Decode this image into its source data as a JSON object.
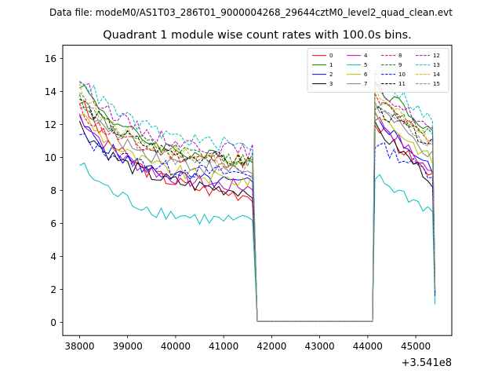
{
  "chart_data": {
    "type": "line",
    "suptitle": "Data file: modeM0/AS1T03_286T01_9000004268_29644cztM0_level2_quad_clean.evt",
    "title": "Quadrant 1 module wise count rates with 100.0s bins.",
    "xlabel": "",
    "ylabel": "",
    "x_offset_label": "+3.541e8",
    "x_offset": 354100000,
    "xlim": [
      37650,
      45750
    ],
    "ylim": [
      -0.8,
      16.8
    ],
    "x_ticks": [
      38000,
      39000,
      40000,
      41000,
      42000,
      43000,
      44000,
      45000
    ],
    "x_tick_labels": [
      "38000",
      "39000",
      "40000",
      "41000",
      "42000",
      "43000",
      "44000",
      "45000"
    ],
    "y_ticks": [
      0,
      2,
      4,
      6,
      8,
      10,
      12,
      14,
      16
    ],
    "y_tick_labels": [
      "0",
      "2",
      "4",
      "6",
      "8",
      "10",
      "12",
      "14",
      "16"
    ],
    "bin_seconds": 100,
    "x_start": 38000,
    "segments": {
      "first_on": [
        38000,
        41600
      ],
      "drop_to": 41650,
      "gap": [
        41700,
        44100
      ],
      "second_on": [
        44150,
        45350
      ],
      "end": 45400
    },
    "legend": {
      "placement": "top-right",
      "columns": 4
    },
    "series": [
      {
        "name": "0",
        "color": "#ff0000",
        "style": "solid",
        "start": 13.5,
        "plateau": 7.5,
        "peak2": 12.0,
        "end2": 8.8,
        "last": 1.8
      },
      {
        "name": "1",
        "color": "#008000",
        "style": "solid",
        "start": 14.6,
        "plateau": 9.6,
        "peak2": 14.5,
        "end2": 11.6,
        "last": 2.0
      },
      {
        "name": "2",
        "color": "#0000ff",
        "style": "solid",
        "start": 12.2,
        "plateau": 8.2,
        "peak2": 12.5,
        "end2": 9.2,
        "last": 1.7
      },
      {
        "name": "3",
        "color": "#000000",
        "style": "solid",
        "start": 12.0,
        "plateau": 7.8,
        "peak2": 11.8,
        "end2": 8.6,
        "last": 1.7
      },
      {
        "name": "4",
        "color": "#bf00bf",
        "style": "solid",
        "start": 12.6,
        "plateau": 8.0,
        "peak2": 12.5,
        "end2": 9.0,
        "last": 1.8
      },
      {
        "name": "5",
        "color": "#00bfbf",
        "style": "solid",
        "start": 9.6,
        "plateau": 5.9,
        "peak2": 8.8,
        "end2": 6.7,
        "last": 1.1
      },
      {
        "name": "6",
        "color": "#bfbf00",
        "style": "solid",
        "start": 12.8,
        "plateau": 8.4,
        "peak2": 12.8,
        "end2": 9.8,
        "last": 1.8
      },
      {
        "name": "7",
        "color": "#808080",
        "style": "solid",
        "start": 13.4,
        "plateau": 9.0,
        "peak2": 13.2,
        "end2": 10.0,
        "last": 1.9
      },
      {
        "name": "8",
        "color": "#ff0000",
        "style": "dashed",
        "start": 12.9,
        "plateau": 9.6,
        "peak2": 13.6,
        "end2": 10.8,
        "last": 2.0
      },
      {
        "name": "9",
        "color": "#008000",
        "style": "dashed",
        "start": 13.6,
        "plateau": 9.7,
        "peak2": 13.3,
        "end2": 11.4,
        "last": 2.0
      },
      {
        "name": "10",
        "color": "#0000ff",
        "style": "dashed",
        "start": 11.3,
        "plateau": 8.9,
        "peak2": 10.8,
        "end2": 9.0,
        "last": 1.6
      },
      {
        "name": "11",
        "color": "#000000",
        "style": "dashed",
        "start": 13.6,
        "plateau": 9.6,
        "peak2": 13.0,
        "end2": 10.8,
        "last": 1.9
      },
      {
        "name": "12",
        "color": "#bf00bf",
        "style": "dashed",
        "start": 14.8,
        "plateau": 10.2,
        "peak2": 14.3,
        "end2": 11.6,
        "last": 2.1
      },
      {
        "name": "13",
        "color": "#00bfbf",
        "style": "dashed",
        "start": 15.0,
        "plateau": 10.5,
        "peak2": 15.1,
        "end2": 12.2,
        "last": 2.1
      },
      {
        "name": "14",
        "color": "#bfbf00",
        "style": "dashed",
        "start": 14.1,
        "plateau": 9.6,
        "peak2": 14.0,
        "end2": 11.0,
        "last": 1.9
      },
      {
        "name": "15",
        "color": "#808080",
        "style": "dashed",
        "start": 13.7,
        "plateau": 9.2,
        "peak2": 13.3,
        "end2": 10.6,
        "last": 1.9
      }
    ]
  }
}
